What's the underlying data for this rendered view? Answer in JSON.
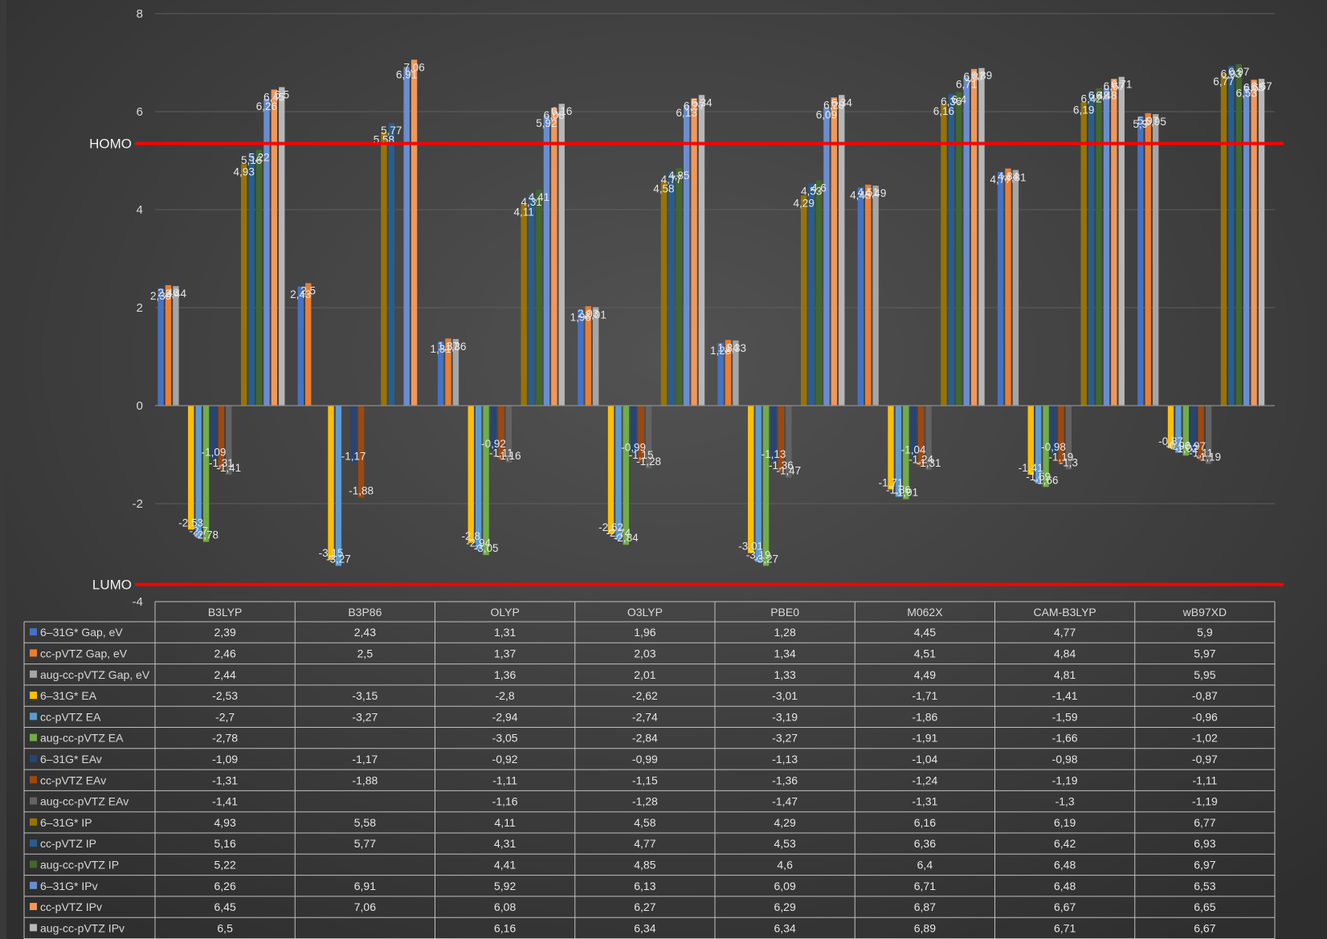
{
  "chart_data": {
    "type": "bar",
    "title": "",
    "xlabel": "",
    "ylabel": "",
    "ylim": [
      -4,
      8
    ],
    "yticks": [
      -4,
      -2,
      0,
      2,
      4,
      6,
      8
    ],
    "grid": true,
    "legend": "data-table-below",
    "categories": [
      "B3LYP",
      "B3P86",
      "OLYP",
      "O3LYP",
      "PBE0",
      "M062X",
      "CAM-B3LYP",
      "wB97XD"
    ],
    "reference_lines": [
      {
        "label": "HOMO",
        "y": 5.35,
        "color": "#ff0000"
      },
      {
        "label": "LUMO",
        "y": -3.65,
        "color": "#ff0000"
      }
    ],
    "series": [
      {
        "name": "6–31G* Gap, eV",
        "color": "#4472c4",
        "values": [
          2.39,
          2.43,
          1.31,
          1.96,
          1.28,
          4.45,
          4.77,
          5.9
        ],
        "labels": [
          "2,39",
          "2,43",
          "1,31",
          "1,96",
          "1,28",
          "4,45",
          "4,77",
          "5,9"
        ]
      },
      {
        "name": "cc-pVTZ Gap, eV",
        "color": "#ed7d31",
        "values": [
          2.46,
          2.5,
          1.37,
          2.03,
          1.34,
          4.51,
          4.84,
          5.97
        ],
        "labels": [
          "2,46",
          "2,5",
          "1,37",
          "2,03",
          "1,34",
          "4,51",
          "4,84",
          "5,97"
        ]
      },
      {
        "name": "aug-cc-pVTZ Gap, eV",
        "color": "#a5a5a5",
        "values": [
          2.44,
          null,
          1.36,
          2.01,
          1.33,
          4.49,
          4.81,
          5.95
        ],
        "labels": [
          "2,44",
          "",
          "1,36",
          "2,01",
          "1,33",
          "4,49",
          "4,81",
          "5,95"
        ]
      },
      {
        "name": "6–31G* EA",
        "color": "#ffc000",
        "values": [
          -2.53,
          -3.15,
          -2.8,
          -2.62,
          -3.01,
          -1.71,
          -1.41,
          -0.87
        ],
        "labels": [
          "-2,53",
          "-3,15",
          "-2,8",
          "-2,62",
          "-3,01",
          "-1,71",
          "-1,41",
          "-0,87"
        ]
      },
      {
        "name": "cc-pVTZ EA",
        "color": "#5b9bd5",
        "values": [
          -2.7,
          -3.27,
          -2.94,
          -2.74,
          -3.19,
          -1.86,
          -1.59,
          -0.96
        ],
        "labels": [
          "-2,7",
          "-3,27",
          "-2,94",
          "-2,74",
          "-3,19",
          "-1,86",
          "-1,59",
          "-0,96"
        ]
      },
      {
        "name": "aug-cc-pVTZ EA",
        "color": "#70ad47",
        "values": [
          -2.78,
          null,
          -3.05,
          -2.84,
          -3.27,
          -1.91,
          -1.66,
          -1.02
        ],
        "labels": [
          "-2,78",
          "",
          "-3,05",
          "-2,84",
          "-3,27",
          "-1,91",
          "-1,66",
          "-1,02"
        ]
      },
      {
        "name": "6–31G* EAv",
        "color": "#264478",
        "values": [
          -1.09,
          -1.17,
          -0.92,
          -0.99,
          -1.13,
          -1.04,
          -0.98,
          -0.97
        ],
        "labels": [
          "-1,09",
          "-1,17",
          "-0,92",
          "-0,99",
          "-1,13",
          "-1,04",
          "-0,98",
          "-0,97"
        ]
      },
      {
        "name": "cc-pVTZ EAv",
        "color": "#9e480e",
        "values": [
          -1.31,
          -1.88,
          -1.11,
          -1.15,
          -1.36,
          -1.24,
          -1.19,
          -1.11
        ],
        "labels": [
          "-1,31",
          "-1,88",
          "-1,11",
          "-1,15",
          "-1,36",
          "-1,24",
          "-1,19",
          "-1,11"
        ]
      },
      {
        "name": "aug-cc-pVTZ EAv",
        "color": "#636363",
        "values": [
          -1.41,
          null,
          -1.16,
          -1.28,
          -1.47,
          -1.31,
          -1.3,
          -1.19
        ],
        "labels": [
          "-1,41",
          "",
          "-1,16",
          "-1,28",
          "-1,47",
          "-1,31",
          "-1,3",
          "-1,19"
        ]
      },
      {
        "name": "6–31G* IP",
        "color": "#997300",
        "values": [
          4.93,
          5.58,
          4.11,
          4.58,
          4.29,
          6.16,
          6.19,
          6.77
        ],
        "labels": [
          "4,93",
          "5,58",
          "4,11",
          "4,58",
          "4,29",
          "6,16",
          "6,19",
          "6,77"
        ]
      },
      {
        "name": "cc-pVTZ IP",
        "color": "#255e91",
        "values": [
          5.16,
          5.77,
          4.31,
          4.77,
          4.53,
          6.36,
          6.42,
          6.93
        ],
        "labels": [
          "5,16",
          "5,77",
          "4,31",
          "4,77",
          "4,53",
          "6,36",
          "6,42",
          "6,93"
        ]
      },
      {
        "name": "aug-cc-pVTZ IP",
        "color": "#43682b",
        "values": [
          5.22,
          null,
          4.41,
          4.85,
          4.6,
          6.4,
          6.48,
          6.97
        ],
        "labels": [
          "5,22",
          "",
          "4,41",
          "4,85",
          "4,6",
          "6,4",
          "6,48",
          "6,97"
        ]
      },
      {
        "name": "6–31G* IPv",
        "color": "#698ed0",
        "values": [
          6.26,
          6.91,
          5.92,
          6.13,
          6.09,
          6.71,
          6.48,
          6.53
        ],
        "labels": [
          "6,26",
          "6,91",
          "5,92",
          "6,13",
          "6,09",
          "6,71",
          "6,48",
          "6,53"
        ]
      },
      {
        "name": "cc-pVTZ IPv",
        "color": "#f1975a",
        "values": [
          6.45,
          7.06,
          6.08,
          6.27,
          6.29,
          6.87,
          6.67,
          6.65
        ],
        "labels": [
          "6,45",
          "7,06",
          "6,08",
          "6,27",
          "6,29",
          "6,87",
          "6,67",
          "6,65"
        ]
      },
      {
        "name": "aug-cc-pVTZ IPv",
        "color": "#b7b7b7",
        "values": [
          6.5,
          null,
          6.16,
          6.34,
          6.34,
          6.89,
          6.71,
          6.67
        ],
        "labels": [
          "6,5",
          "",
          "6,16",
          "6,34",
          "6,34",
          "6,89",
          "6,71",
          "6,67"
        ]
      }
    ]
  }
}
